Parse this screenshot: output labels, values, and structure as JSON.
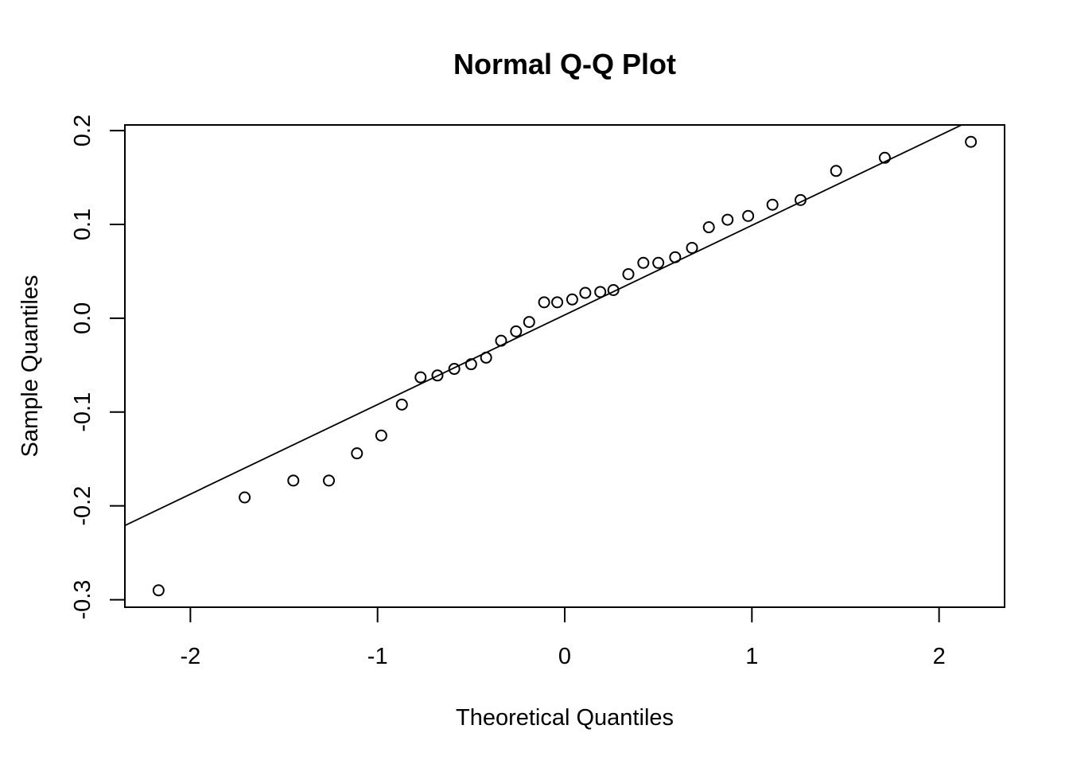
{
  "chart_data": {
    "type": "scatter",
    "title": "Normal Q-Q Plot",
    "xlabel": "Theoretical Quantiles",
    "ylabel": "Sample Quantiles",
    "xlim": [
      -2.35,
      2.35
    ],
    "ylim": [
      -0.308,
      0.206
    ],
    "xticks": [
      -2,
      -1,
      0,
      1,
      2
    ],
    "xtick_labels": [
      "-2",
      "-1",
      "0",
      "1",
      "2"
    ],
    "yticks": [
      -0.3,
      -0.2,
      -0.1,
      0.0,
      0.1,
      0.2
    ],
    "ytick_labels": [
      "-0.3",
      "-0.2",
      "-0.1",
      "0.0",
      "0.1",
      "0.2"
    ],
    "grid": false,
    "legend": "none",
    "points": {
      "x": [
        -2.17,
        -1.71,
        -1.45,
        -1.26,
        -1.11,
        -0.98,
        -0.87,
        -0.77,
        -0.68,
        -0.59,
        -0.5,
        -0.42,
        -0.34,
        -0.26,
        -0.19,
        -0.11,
        -0.04,
        0.04,
        0.11,
        0.19,
        0.26,
        0.34,
        0.42,
        0.5,
        0.59,
        0.68,
        0.77,
        0.87,
        0.98,
        1.11,
        1.26,
        1.45,
        1.71,
        2.17
      ],
      "y": [
        -0.29,
        -0.191,
        -0.173,
        -0.173,
        -0.144,
        -0.125,
        -0.092,
        -0.063,
        -0.061,
        -0.054,
        -0.049,
        -0.042,
        -0.024,
        -0.014,
        -0.004,
        0.017,
        0.017,
        0.02,
        0.027,
        0.028,
        0.03,
        0.047,
        0.059,
        0.059,
        0.065,
        0.075,
        0.097,
        0.105,
        0.109,
        0.121,
        0.126,
        0.157,
        0.171,
        0.188
      ]
    },
    "reference_line": {
      "intercept": 0.0035,
      "slope": 0.0955
    }
  }
}
